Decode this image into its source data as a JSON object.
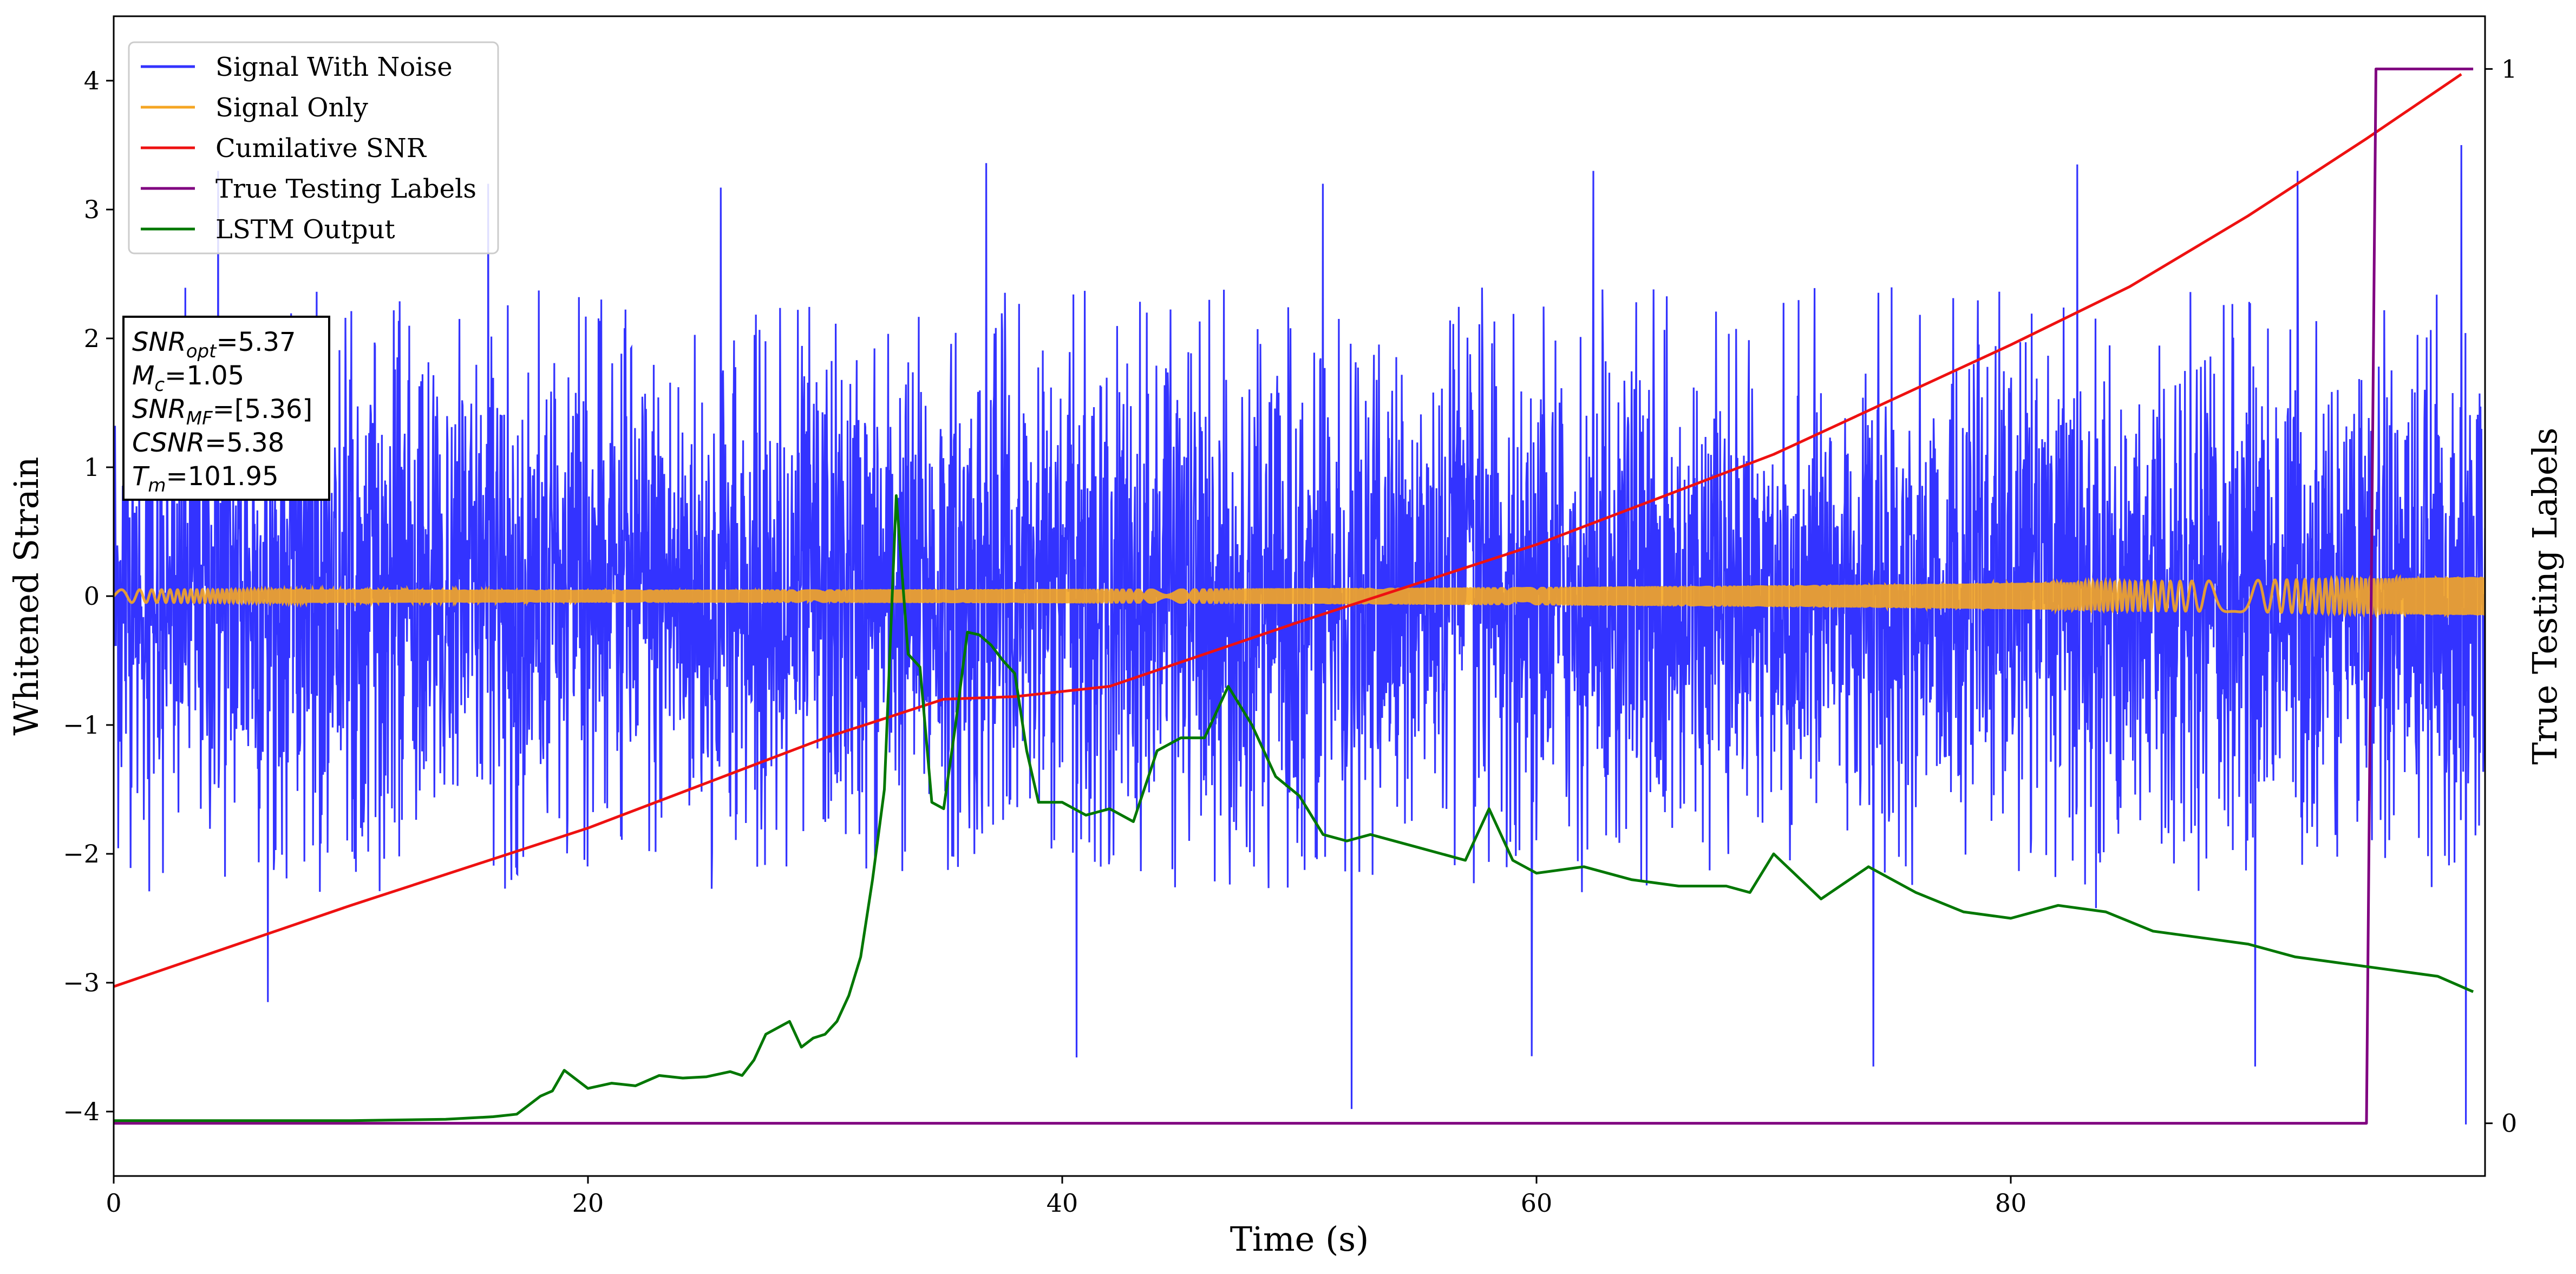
{
  "chart_data": {
    "type": "line",
    "title": "",
    "xlabel": "Time (s)",
    "ylabel": "Whitened Strain",
    "ylabel_right": "True Testing Labels",
    "xlim": [
      0,
      100
    ],
    "ylim": [
      -4.5,
      4.5
    ],
    "ylim_right": [
      -0.05,
      1.05
    ],
    "x_ticks": [
      0,
      20,
      40,
      60,
      80
    ],
    "y_ticks": [
      -4,
      -3,
      -2,
      -1,
      0,
      1,
      2,
      3,
      4
    ],
    "y_ticks_right": [
      0,
      1
    ],
    "grid": false,
    "legend_position": "top-left",
    "annotation": {
      "lines": [
        {
          "base": "SNR",
          "sub": "opt",
          "value": "=5.37"
        },
        {
          "base": "M",
          "sub": "c",
          "value": "=1.05"
        },
        {
          "base": "SNR",
          "sub": "MF",
          "value": "=[5.36]"
        },
        {
          "base": "CSNR",
          "sub": "",
          "value": "=5.38"
        },
        {
          "base": "T",
          "sub": "m",
          "value": "=101.95"
        }
      ]
    },
    "series": [
      {
        "name": "Signal With Noise",
        "color": "#3333ff",
        "axis": "left",
        "kind": "noise",
        "envelope_approx": {
          "typical_min": -2.3,
          "typical_max": 2.4,
          "extreme_min": -4.1,
          "extreme_max": 3.5
        },
        "peaks": [
          {
            "x": 4.4,
            "y": 3.3
          },
          {
            "x": 15.8,
            "y": 3.2
          },
          {
            "x": 25.6,
            "y": 3.17
          },
          {
            "x": 36.8,
            "y": 3.36
          },
          {
            "x": 51.0,
            "y": 3.2
          },
          {
            "x": 62.4,
            "y": 3.3
          },
          {
            "x": 82.8,
            "y": 3.35
          },
          {
            "x": 92.1,
            "y": 3.3
          },
          {
            "x": 99.0,
            "y": 3.5
          },
          {
            "x": 6.5,
            "y": -3.15
          },
          {
            "x": 40.6,
            "y": -3.58
          },
          {
            "x": 52.2,
            "y": -3.98
          },
          {
            "x": 59.8,
            "y": -3.57
          },
          {
            "x": 74.2,
            "y": -3.65
          },
          {
            "x": 90.3,
            "y": -3.65
          },
          {
            "x": 99.2,
            "y": -4.1
          }
        ]
      },
      {
        "name": "Signal Only",
        "color": "#f5a623",
        "axis": "left",
        "kind": "chirp",
        "amplitude_start": 0.05,
        "amplitude_end": 0.15
      },
      {
        "name": "Cumilative SNR",
        "color": "#ee1111",
        "axis": "left",
        "x": [
          0,
          10,
          20,
          30,
          35,
          38,
          42,
          50,
          55,
          60,
          70,
          80,
          85,
          90,
          95,
          99
        ],
        "y": [
          -3.03,
          -2.4,
          -1.8,
          -1.1,
          -0.8,
          -0.78,
          -0.7,
          -0.2,
          0.1,
          0.4,
          1.1,
          1.95,
          2.4,
          2.95,
          3.55,
          4.05
        ]
      },
      {
        "name": "True Testing Labels",
        "color": "#800080",
        "axis": "right",
        "x": [
          0,
          95.0,
          95.4,
          99.5
        ],
        "y": [
          0,
          0,
          1,
          1
        ]
      },
      {
        "name": "LSTM Output",
        "color": "#007700",
        "axis": "left",
        "x": [
          0,
          10,
          14,
          16,
          17,
          18,
          18.5,
          19,
          19.5,
          20,
          21,
          22,
          23,
          24,
          25,
          26,
          26.5,
          27,
          27.5,
          28,
          28.5,
          29,
          29.5,
          30,
          30.5,
          31,
          31.5,
          32,
          32.5,
          33,
          33.5,
          34,
          34.5,
          35,
          35.5,
          36,
          36.5,
          37,
          37.5,
          38,
          38.5,
          39,
          40,
          41,
          42,
          43,
          44,
          45,
          46,
          47,
          48,
          49,
          50,
          51,
          52,
          53,
          55,
          57,
          58,
          59,
          60,
          62,
          64,
          66,
          68,
          69,
          70,
          72,
          74,
          76,
          78,
          80,
          82,
          84,
          86,
          88,
          90,
          92,
          94,
          96,
          98,
          99.5
        ],
        "y": [
          -4.07,
          -4.07,
          -4.06,
          -4.04,
          -4.02,
          -3.88,
          -3.84,
          -3.68,
          -3.75,
          -3.82,
          -3.78,
          -3.8,
          -3.72,
          -3.74,
          -3.73,
          -3.69,
          -3.72,
          -3.6,
          -3.4,
          -3.35,
          -3.3,
          -3.5,
          -3.43,
          -3.4,
          -3.3,
          -3.1,
          -2.8,
          -2.2,
          -1.5,
          0.78,
          -0.45,
          -0.55,
          -1.6,
          -1.65,
          -1.0,
          -0.28,
          -0.3,
          -0.38,
          -0.5,
          -0.6,
          -1.2,
          -1.6,
          -1.6,
          -1.7,
          -1.65,
          -1.75,
          -1.2,
          -1.1,
          -1.1,
          -0.7,
          -1.0,
          -1.4,
          -1.55,
          -1.85,
          -1.9,
          -1.85,
          -1.95,
          -2.05,
          -1.65,
          -2.05,
          -2.15,
          -2.1,
          -2.2,
          -2.25,
          -2.25,
          -2.3,
          -2.0,
          -2.35,
          -2.1,
          -2.3,
          -2.45,
          -2.5,
          -2.4,
          -2.45,
          -2.6,
          -2.65,
          -2.7,
          -2.8,
          -2.85,
          -2.9,
          -2.95,
          -3.07
        ]
      }
    ]
  }
}
